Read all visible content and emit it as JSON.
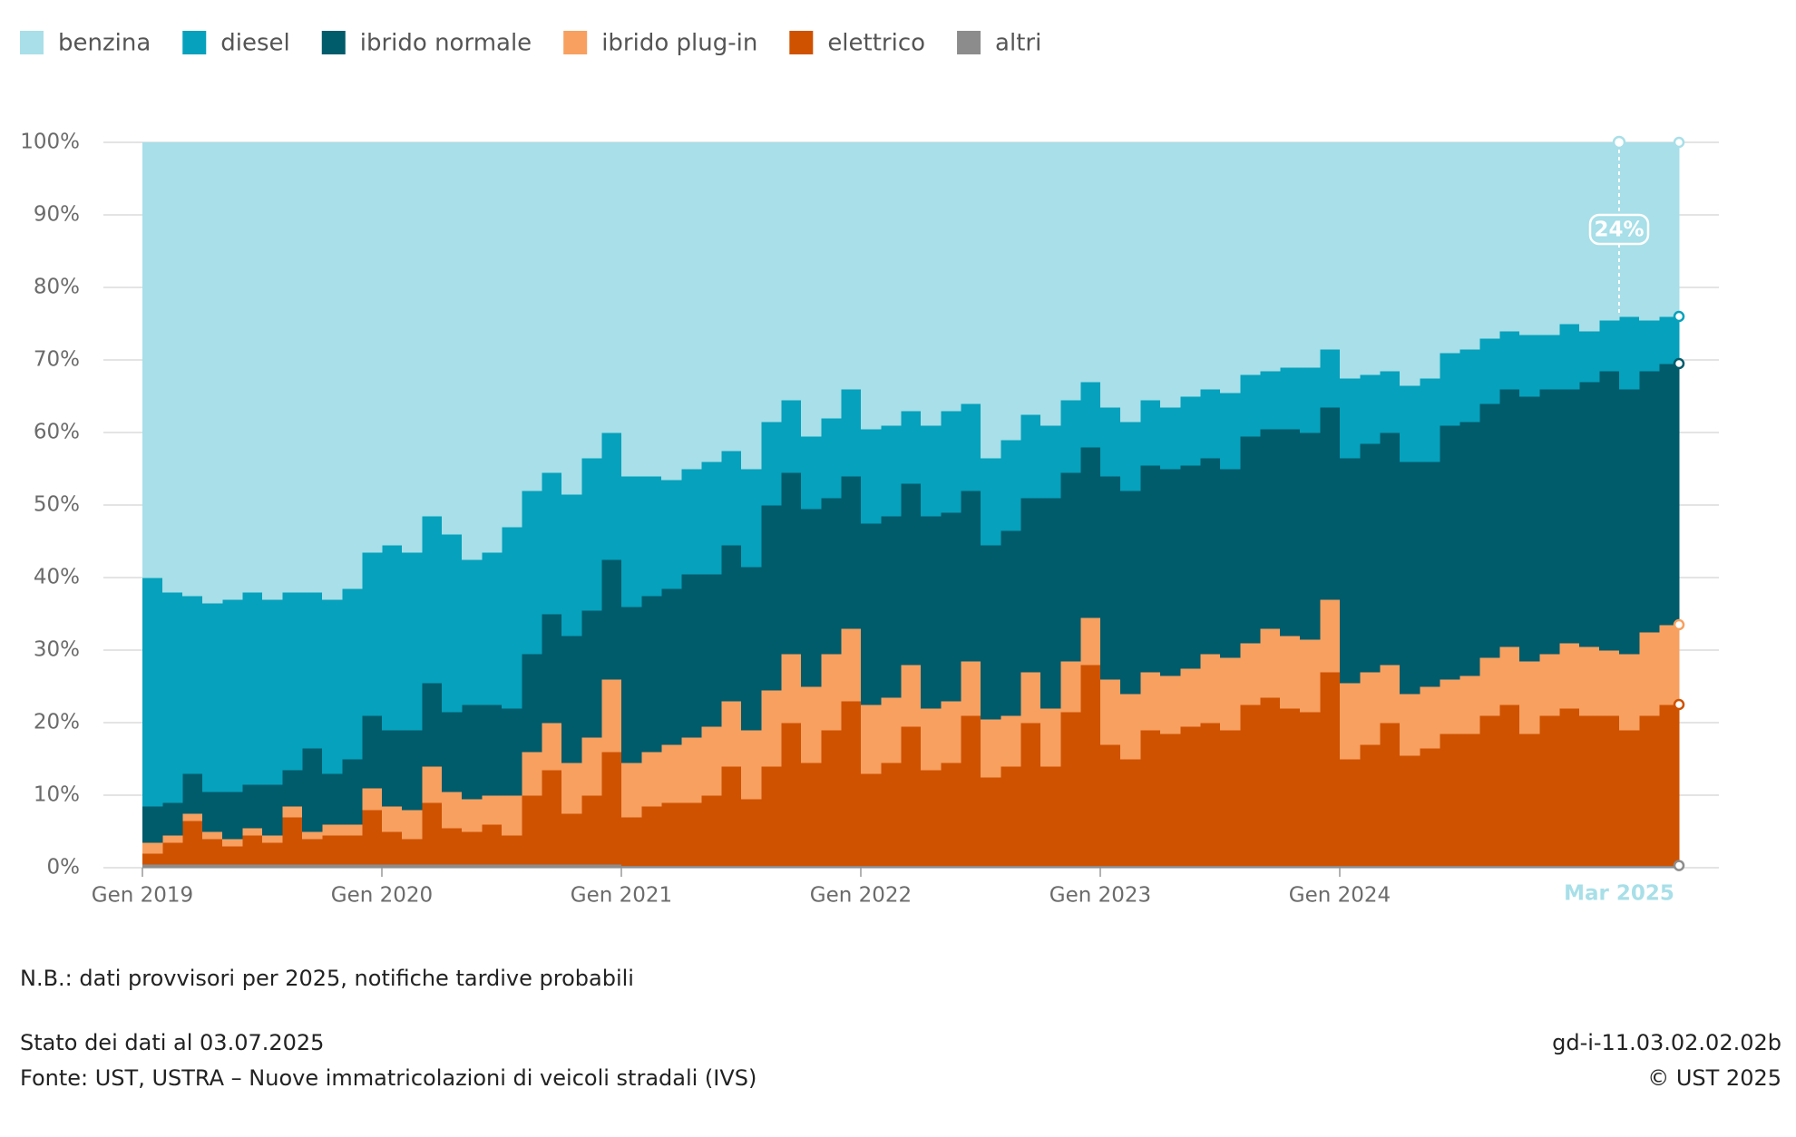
{
  "chart_data": {
    "type": "stacked-step-area",
    "x": [
      "2019-01",
      "2019-02",
      "2019-03",
      "2019-04",
      "2019-05",
      "2019-06",
      "2019-07",
      "2019-08",
      "2019-09",
      "2019-10",
      "2019-11",
      "2019-12",
      "2020-01",
      "2020-02",
      "2020-03",
      "2020-04",
      "2020-05",
      "2020-06",
      "2020-07",
      "2020-08",
      "2020-09",
      "2020-10",
      "2020-11",
      "2020-12",
      "2021-01",
      "2021-02",
      "2021-03",
      "2021-04",
      "2021-05",
      "2021-06",
      "2021-07",
      "2021-08",
      "2021-09",
      "2021-10",
      "2021-11",
      "2021-12",
      "2022-01",
      "2022-02",
      "2022-03",
      "2022-04",
      "2022-05",
      "2022-06",
      "2022-07",
      "2022-08",
      "2022-09",
      "2022-10",
      "2022-11",
      "2022-12",
      "2023-01",
      "2023-02",
      "2023-03",
      "2023-04",
      "2023-05",
      "2023-06",
      "2023-07",
      "2023-08",
      "2023-09",
      "2023-10",
      "2023-11",
      "2023-12",
      "2024-01",
      "2024-02",
      "2024-03",
      "2024-04",
      "2024-05",
      "2024-06",
      "2024-07",
      "2024-08",
      "2024-09",
      "2024-10",
      "2024-11",
      "2024-12",
      "2025-01",
      "2025-02",
      "2025-03",
      "2025-04",
      "2025-05"
    ],
    "xlim": [
      "2019-01",
      "2025-06"
    ],
    "xticks": [
      {
        "value": "2019-01",
        "label": "Gen 2019"
      },
      {
        "value": "2020-01",
        "label": "Gen 2020"
      },
      {
        "value": "2021-01",
        "label": "Gen 2021"
      },
      {
        "value": "2022-01",
        "label": "Gen 2022"
      },
      {
        "value": "2023-01",
        "label": "Gen 2023"
      },
      {
        "value": "2024-01",
        "label": "Gen 2024"
      }
    ],
    "ylim": [
      0,
      100
    ],
    "yticks": [
      {
        "value": 0,
        "label": "0%"
      },
      {
        "value": 10,
        "label": "10%"
      },
      {
        "value": 20,
        "label": "20%"
      },
      {
        "value": 30,
        "label": "30%"
      },
      {
        "value": 40,
        "label": "40%"
      },
      {
        "value": 50,
        "label": "50%"
      },
      {
        "value": 60,
        "label": "60%"
      },
      {
        "value": 70,
        "label": "70%"
      },
      {
        "value": 80,
        "label": "80%"
      },
      {
        "value": 90,
        "label": "90%"
      },
      {
        "value": 100,
        "label": "100%"
      }
    ],
    "grid": true,
    "series": [
      {
        "name": "benzina",
        "color": "#a8dfe8",
        "values": [
          60,
          62,
          62.5,
          63.5,
          63,
          62,
          63,
          62,
          62,
          63,
          61.5,
          56.5,
          55.5,
          56.5,
          51.5,
          54,
          57.5,
          56.5,
          53,
          48,
          45.5,
          48.5,
          43.5,
          40,
          46,
          46,
          46.5,
          45,
          44,
          42.5,
          45,
          38.5,
          35.5,
          40.5,
          38,
          34,
          39.5,
          39,
          37,
          39,
          37,
          36,
          43.5,
          41,
          37.5,
          39,
          35.5,
          33,
          36.5,
          38.5,
          35.5,
          36.5,
          35,
          34,
          34.5,
          32,
          31.5,
          31,
          31,
          28.5,
          32.5,
          32,
          31.5,
          33.5,
          32.5,
          29,
          28.5,
          27,
          26,
          26.5,
          26.5,
          25,
          26,
          24.5,
          24,
          24.5,
          24
        ]
      },
      {
        "name": "diesel",
        "color": "#06a1bc",
        "values": [
          31.5,
          29,
          24.5,
          26,
          26.5,
          26.5,
          25.5,
          24.5,
          21.5,
          24,
          23.5,
          22.5,
          25.5,
          24.5,
          23,
          24.5,
          20,
          21,
          25,
          22.5,
          19.5,
          19.5,
          21,
          17.5,
          18,
          16.5,
          15,
          14.5,
          15.5,
          13,
          13.5,
          11.5,
          10,
          10,
          11,
          12,
          13,
          12.5,
          10,
          12.5,
          14,
          12,
          12,
          12.5,
          11.5,
          10,
          10,
          9,
          9.5,
          9.5,
          9,
          8.5,
          9.5,
          9.5,
          10.5,
          8.5,
          8,
          8.5,
          9,
          8,
          11,
          9.5,
          8.5,
          10.5,
          11.5,
          10,
          10,
          9,
          8,
          8.5,
          7.5,
          9,
          7,
          7,
          10,
          7,
          6.5
        ]
      },
      {
        "name": "ibrido normale",
        "color": "#005b6b",
        "values": [
          5,
          4.5,
          5.5,
          5.5,
          6.5,
          6,
          7,
          5,
          11.5,
          7,
          9,
          10,
          10.5,
          11,
          11.5,
          11,
          13,
          12.5,
          12,
          13.5,
          15,
          17.5,
          17.5,
          16.5,
          21.5,
          21.5,
          21.5,
          22.5,
          21,
          21.5,
          22.5,
          25.5,
          25,
          24.5,
          21.5,
          21,
          25,
          25,
          25,
          26.5,
          26,
          23.5,
          24,
          25.5,
          24,
          29,
          26,
          23.5,
          28,
          28,
          28.5,
          28.5,
          28,
          27,
          26,
          28.5,
          27.5,
          28.5,
          28.5,
          26.5,
          31,
          31.5,
          32,
          32,
          31,
          35,
          35,
          35,
          35.5,
          36.5,
          36.5,
          35,
          36.5,
          38.5,
          36.5,
          36,
          36
        ]
      },
      {
        "name": "ibrido plug-in",
        "color": "#f7a060",
        "values": [
          1.5,
          1,
          1,
          1,
          1,
          1,
          1,
          1.5,
          1,
          1.5,
          1.5,
          3,
          3.5,
          4,
          5,
          5,
          4.5,
          4,
          5.5,
          6,
          6.5,
          7,
          8,
          10,
          7.5,
          7.5,
          8,
          9,
          9.5,
          9,
          9.5,
          10.5,
          9.5,
          10.5,
          10.5,
          10,
          9.5,
          9,
          8.5,
          8.5,
          8.5,
          7.5,
          8,
          7,
          7,
          8,
          7,
          6.5,
          9,
          9,
          8,
          8,
          8,
          9.5,
          10,
          8.5,
          9.5,
          10,
          10,
          10,
          10.5,
          10,
          8,
          8.5,
          8.5,
          7.5,
          8,
          8,
          8,
          10,
          8.5,
          9,
          9.5,
          9,
          10.5,
          11.5,
          11
        ]
      },
      {
        "name": "elettrico",
        "color": "#cf5200",
        "values": [
          1.5,
          3,
          6,
          3.5,
          2.5,
          4,
          3,
          6.5,
          3.5,
          4,
          4,
          7.5,
          4.5,
          3.5,
          8.5,
          5,
          4.5,
          5.5,
          4,
          9.5,
          13,
          7,
          9.5,
          15.5,
          6.7,
          8.2,
          8.7,
          8.7,
          9.7,
          13.7,
          9.2,
          13.7,
          19.7,
          14.2,
          18.7,
          22.7,
          12.7,
          14.2,
          19.2,
          13.2,
          14.2,
          20.7,
          12.2,
          13.7,
          19.7,
          13.7,
          21.2,
          27.7,
          16.7,
          14.7,
          18.7,
          18.2,
          19.2,
          19.7,
          18.7,
          22.2,
          23.2,
          21.7,
          21.2,
          26.7,
          14.7,
          16.7,
          19.7,
          15.2,
          16.2,
          18.2,
          18.2,
          20.7,
          22.2,
          18.2,
          20.7,
          21.7,
          20.7,
          20.7,
          18.7,
          20.7,
          22.2
        ]
      },
      {
        "name": "altri",
        "color": "#8c8c8c",
        "values": [
          0.5,
          0.5,
          0.5,
          0.5,
          0.5,
          0.5,
          0.5,
          0.5,
          0.5,
          0.5,
          0.5,
          0.5,
          0.5,
          0.5,
          0.5,
          0.5,
          0.5,
          0.5,
          0.5,
          0.5,
          0.5,
          0.5,
          0.5,
          0.5,
          0.3,
          0.3,
          0.3,
          0.3,
          0.3,
          0.3,
          0.3,
          0.3,
          0.3,
          0.3,
          0.3,
          0.3,
          0.3,
          0.3,
          0.3,
          0.3,
          0.3,
          0.3,
          0.3,
          0.3,
          0.3,
          0.3,
          0.3,
          0.3,
          0.3,
          0.3,
          0.3,
          0.3,
          0.3,
          0.3,
          0.3,
          0.3,
          0.3,
          0.3,
          0.3,
          0.3,
          0.3,
          0.3,
          0.3,
          0.3,
          0.3,
          0.3,
          0.3,
          0.3,
          0.3,
          0.3,
          0.3,
          0.3,
          0.3,
          0.3,
          0.3,
          0.3,
          0.3
        ]
      }
    ],
    "hover": {
      "x": "2025-03",
      "label": "Mar 2025",
      "value": 24,
      "value_label": "24%"
    }
  },
  "footer": {
    "note": "N.B.: dati provvisori per 2025, notifiche tardive probabili",
    "status": "Stato dei dati al 03.07.2025",
    "source": "Fonte: UST, USTRA – Nuove immatricolazioni di veicoli stradali (IVS)",
    "code": "gd-i-11.03.02.02.02b",
    "copyright": "© UST 2025"
  }
}
